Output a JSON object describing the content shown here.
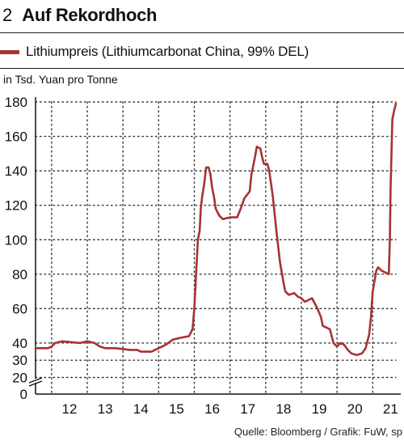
{
  "header": {
    "number": "2",
    "title": "Auf Rekordhoch"
  },
  "legend": {
    "label": "Lithiumpreis (Lithiumcarbonat China, 99% DEL)",
    "color": "#a83232"
  },
  "unit_label": "in Tsd. Yuan pro Tonne",
  "source": "Quelle: Bloomberg / Grafik: FuW, sp",
  "chart_data": {
    "type": "line",
    "title": "Auf Rekordhoch",
    "ylabel": "in Tsd. Yuan pro Tonne",
    "xlabel": "",
    "xlim": [
      2011.55,
      2021.65
    ],
    "ylim": [
      0,
      180
    ],
    "yticks": [
      0,
      20,
      30,
      40,
      60,
      80,
      100,
      120,
      140,
      160,
      180
    ],
    "xtick_labels": [
      "12",
      "13",
      "14",
      "15",
      "16",
      "17",
      "18",
      "19",
      "20",
      "21"
    ],
    "xtick_positions": [
      2012.5,
      2013.5,
      2014.5,
      2015.5,
      2016.5,
      2017.5,
      2018.5,
      2019.5,
      2020.5,
      2021.5
    ],
    "grid": true,
    "series": [
      {
        "name": "Lithiumpreis (Lithiumcarbonat China, 99% DEL)",
        "color": "#a83232",
        "points": [
          [
            2011.55,
            37
          ],
          [
            2011.9,
            37
          ],
          [
            2012.0,
            38
          ],
          [
            2012.1,
            40
          ],
          [
            2012.3,
            41
          ],
          [
            2012.8,
            40
          ],
          [
            2013.0,
            41
          ],
          [
            2013.2,
            40
          ],
          [
            2013.35,
            38
          ],
          [
            2013.5,
            37
          ],
          [
            2013.8,
            37
          ],
          [
            2014.2,
            36
          ],
          [
            2014.4,
            36
          ],
          [
            2014.5,
            35
          ],
          [
            2014.8,
            35
          ],
          [
            2015.0,
            37
          ],
          [
            2015.2,
            39
          ],
          [
            2015.4,
            42
          ],
          [
            2015.6,
            43
          ],
          [
            2015.85,
            44
          ],
          [
            2015.95,
            48
          ],
          [
            2016.0,
            60
          ],
          [
            2016.05,
            80
          ],
          [
            2016.1,
            100
          ],
          [
            2016.15,
            105
          ],
          [
            2016.18,
            118
          ],
          [
            2016.22,
            125
          ],
          [
            2016.28,
            133
          ],
          [
            2016.33,
            142
          ],
          [
            2016.4,
            142
          ],
          [
            2016.45,
            138
          ],
          [
            2016.5,
            130
          ],
          [
            2016.55,
            125
          ],
          [
            2016.6,
            118
          ],
          [
            2016.7,
            114
          ],
          [
            2016.8,
            112
          ],
          [
            2017.0,
            113
          ],
          [
            2017.2,
            113
          ],
          [
            2017.3,
            118
          ],
          [
            2017.4,
            124
          ],
          [
            2017.55,
            128
          ],
          [
            2017.6,
            138
          ],
          [
            2017.7,
            148
          ],
          [
            2017.75,
            154
          ],
          [
            2017.85,
            153
          ],
          [
            2017.9,
            148
          ],
          [
            2017.95,
            144
          ],
          [
            2018.05,
            144
          ],
          [
            2018.1,
            140
          ],
          [
            2018.2,
            125
          ],
          [
            2018.3,
            105
          ],
          [
            2018.4,
            87
          ],
          [
            2018.5,
            75
          ],
          [
            2018.55,
            70
          ],
          [
            2018.65,
            68
          ],
          [
            2018.8,
            69
          ],
          [
            2018.9,
            67
          ],
          [
            2019.0,
            66
          ],
          [
            2019.1,
            64
          ],
          [
            2019.3,
            66
          ],
          [
            2019.45,
            60
          ],
          [
            2019.55,
            55
          ],
          [
            2019.6,
            50
          ],
          [
            2019.8,
            48
          ],
          [
            2019.9,
            40
          ],
          [
            2020.0,
            38
          ],
          [
            2020.1,
            40
          ],
          [
            2020.2,
            39
          ],
          [
            2020.3,
            36
          ],
          [
            2020.4,
            34
          ],
          [
            2020.55,
            33
          ],
          [
            2020.7,
            34
          ],
          [
            2020.8,
            37
          ],
          [
            2020.9,
            45
          ],
          [
            2020.95,
            55
          ],
          [
            2021.0,
            70
          ],
          [
            2021.1,
            82
          ],
          [
            2021.15,
            84
          ],
          [
            2021.25,
            82
          ],
          [
            2021.35,
            81
          ],
          [
            2021.45,
            80
          ],
          [
            2021.48,
            100
          ],
          [
            2021.5,
            130
          ],
          [
            2021.55,
            170
          ],
          [
            2021.6,
            175
          ],
          [
            2021.65,
            179
          ]
        ]
      }
    ]
  }
}
